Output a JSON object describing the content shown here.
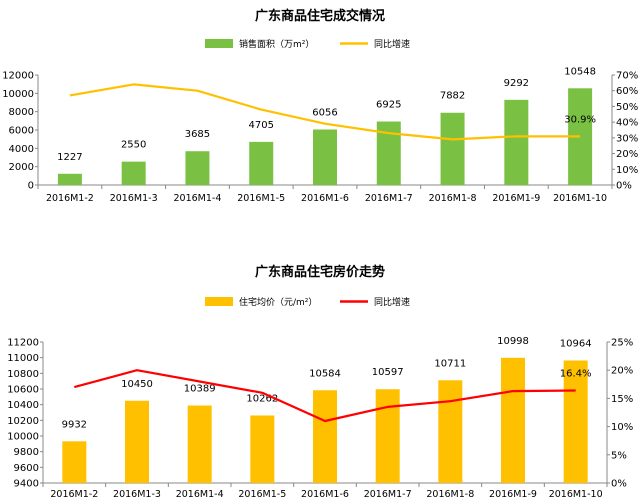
{
  "chart_data": [
    {
      "type": "bar",
      "title": "广东商品住宅成交情况",
      "categories": [
        "2016M1-2",
        "2016M1-3",
        "2016M1-4",
        "2016M1-5",
        "2016M1-6",
        "2016M1-7",
        "2016M1-8",
        "2016M1-9",
        "2016M1-10"
      ],
      "series": [
        {
          "name": "销售面积（万m²）",
          "kind": "bar",
          "axis": "left",
          "color": "#7ac143",
          "values": [
            1227,
            2550,
            3685,
            4705,
            6056,
            6925,
            7882,
            9292,
            10548
          ],
          "labels": [
            "1227",
            "2550",
            "3685",
            "4705",
            "6056",
            "6925",
            "7882",
            "9292",
            "10548"
          ]
        },
        {
          "name": "同比增速",
          "kind": "line",
          "axis": "right",
          "color": "#ffc000",
          "values": [
            0.57,
            0.64,
            0.6,
            0.48,
            0.39,
            0.33,
            0.29,
            0.31,
            0.309
          ]
        }
      ],
      "line_label": "30.9%",
      "yleft": {
        "min": 0,
        "max": 12000,
        "ticks": [
          "0",
          "2000",
          "4000",
          "6000",
          "8000",
          "10000",
          "12000"
        ]
      },
      "yright": {
        "min": 0,
        "max": 0.7,
        "ticks": [
          "0%",
          "10%",
          "20%",
          "30%",
          "40%",
          "50%",
          "60%",
          "70%"
        ]
      },
      "legend": "top-center"
    },
    {
      "type": "bar",
      "title": "广东商品住宅房价走势",
      "categories": [
        "2016M1-2",
        "2016M1-3",
        "2016M1-4",
        "2016M1-5",
        "2016M1-6",
        "2016M1-7",
        "2016M1-8",
        "2016M1-9",
        "2016M1-10"
      ],
      "series": [
        {
          "name": "住宅均价（元/m²）",
          "kind": "bar",
          "axis": "left",
          "color": "#ffc000",
          "values": [
            9932,
            10450,
            10389,
            10262,
            10584,
            10597,
            10711,
            10998,
            10964
          ],
          "labels": [
            "9932",
            "10450",
            "10389",
            "10262",
            "10584",
            "10597",
            "10711",
            "10998",
            "10964"
          ]
        },
        {
          "name": "同比增速",
          "kind": "line",
          "axis": "right",
          "color": "#ff0000",
          "values": [
            0.17,
            0.2,
            0.18,
            0.16,
            0.11,
            0.135,
            0.145,
            0.163,
            0.164
          ]
        }
      ],
      "line_label": "16.4%",
      "yleft": {
        "min": 9400,
        "max": 11200,
        "ticks": [
          "9400",
          "9600",
          "9800",
          "10000",
          "10200",
          "10400",
          "10600",
          "10800",
          "11000",
          "11200"
        ]
      },
      "yright": {
        "min": 0,
        "max": 0.25,
        "ticks": [
          "0%",
          "5%",
          "10%",
          "15%",
          "20%",
          "25%"
        ]
      },
      "legend": "top-center"
    }
  ]
}
